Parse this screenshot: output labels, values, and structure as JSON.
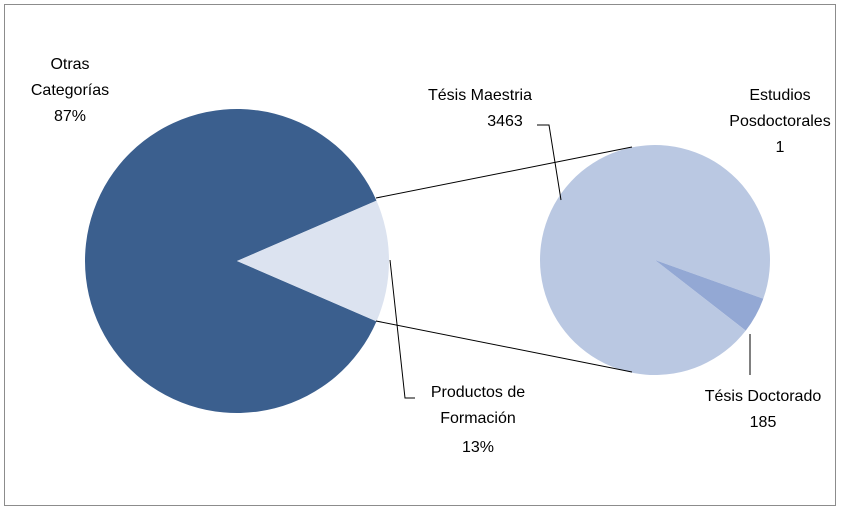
{
  "chart_data": {
    "type": "pie",
    "categories": [
      "Otras Categorías",
      "Productos de Formación"
    ],
    "values": [
      87,
      13
    ],
    "value_labels": [
      "87%",
      "13%"
    ],
    "colors": [
      "#3b5f8e",
      "#dce3f0"
    ],
    "breakout": {
      "categories": [
        "Tésis Maestria",
        "Tésis Doctorado",
        "Estudios Posdoctorales"
      ],
      "values": [
        3463,
        185,
        1
      ],
      "colors": [
        "#bac8e2",
        "#93a8d4",
        "#a8b8dc"
      ]
    }
  }
}
